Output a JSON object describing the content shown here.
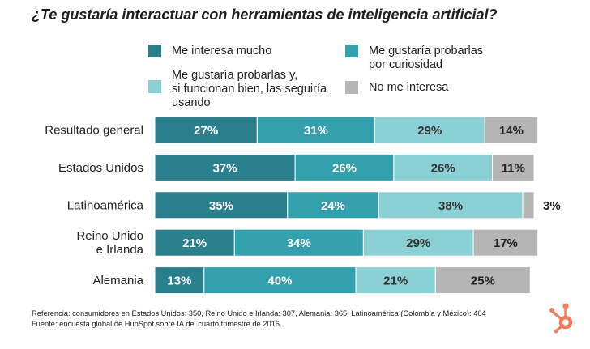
{
  "chart_data": {
    "type": "bar",
    "orientation": "horizontal",
    "stacked": true,
    "title": "¿Te gustaría interactuar con herramientas de inteligencia artificial?",
    "categories": [
      "Resultado general",
      "Estados Unidos",
      "Latinoamérica",
      "Reino Unido e Irlanda",
      "Alemania"
    ],
    "category_lines": [
      [
        "Resultado general"
      ],
      [
        "Estados Unidos"
      ],
      [
        "Latinoamérica"
      ],
      [
        "Reino Unido",
        "e Irlanda"
      ],
      [
        "Alemania"
      ]
    ],
    "series": [
      {
        "name": "Me interesa mucho",
        "color": "#2a7f8d",
        "label_color": "#ffffff",
        "values": [
          27,
          37,
          35,
          21,
          13
        ]
      },
      {
        "name": "Me gustaría probarlas por curiosidad",
        "color": "#33a0ad",
        "label_color": "#ffffff",
        "values": [
          31,
          26,
          24,
          34,
          40
        ]
      },
      {
        "name": "Me gustaría probarlas y, si funcionan bien, las seguiría usando",
        "color": "#8bd0d4",
        "label_color": "#333333",
        "values": [
          29,
          26,
          38,
          29,
          21
        ]
      },
      {
        "name": "No me interesa",
        "color": "#b5b5b5",
        "label_color": "#222222",
        "values": [
          14,
          11,
          3,
          17,
          25
        ]
      }
    ],
    "value_suffix": "%",
    "grid": false,
    "legend_position": "top"
  },
  "legend": {
    "items": [
      {
        "label": "Me interesa mucho",
        "color": "#2a7f8d"
      },
      {
        "label": "Me gustaría probarlas por curiosidad",
        "color": "#33a0ad",
        "lines": [
          "Me gustaría probarlas",
          "por curiosidad"
        ]
      },
      {
        "label": "Me gustaría probarlas y, si funcionan bien, las seguiría usando",
        "color": "#8bd0d4",
        "lines": [
          "Me gustaría probarlas y,",
          "si funcionan bien, las seguiría",
          "usando"
        ]
      },
      {
        "label": "No me interesa",
        "color": "#b5b5b5"
      }
    ]
  },
  "footnotes": {
    "reference": "Referencia: consumidores en Estados Unidos: 350, Reino Unido e Irlanda: 307, Alemania: 365, Latinoamérica (Colombia y México): 404",
    "source": "Fuente: encuesta global de HubSpot sobre IA del cuarto trimestre de 2016."
  },
  "logo": {
    "name": "hubspot-logo",
    "color": "#f47a5b"
  }
}
